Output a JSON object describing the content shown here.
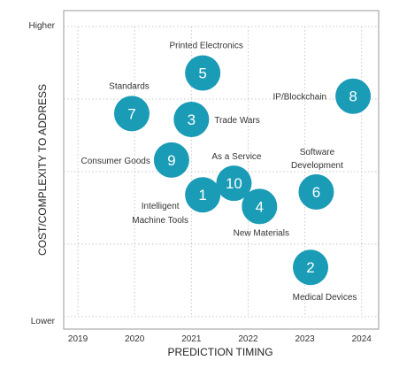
{
  "chart_data": {
    "type": "scatter",
    "title": "",
    "xlabel": "PREDICTION TIMING",
    "ylabel": "COST/COMPLEXITY TO ADDRESS",
    "xlim": [
      2018.75,
      2024.3
    ],
    "ylim": [
      0,
      100
    ],
    "x_ticks": [
      "2019",
      "2020",
      "2021",
      "2022",
      "2023",
      "2024"
    ],
    "y_tick_labels": {
      "top": "Higher",
      "bottom": "Lower"
    },
    "grid": true,
    "marker_color": "#1a9bb6",
    "marker_text_color": "#ffffff",
    "points": [
      {
        "number": "1",
        "label": "Intelligent\nMachine Tools",
        "x": 2021.2,
        "y": 42
      },
      {
        "number": "2",
        "label": "Medical Devices",
        "x": 2023.1,
        "y": 17
      },
      {
        "number": "3",
        "label": "Trade Wars",
        "x": 2021.0,
        "y": 68
      },
      {
        "number": "4",
        "label": "New Materials",
        "x": 2022.2,
        "y": 38
      },
      {
        "number": "5",
        "label": "Printed Electronics",
        "x": 2021.2,
        "y": 84
      },
      {
        "number": "6",
        "label": "Software\nDevelopment",
        "x": 2023.2,
        "y": 43
      },
      {
        "number": "7",
        "label": "Standards",
        "x": 2019.95,
        "y": 70
      },
      {
        "number": "8",
        "label": "IP/Blockchain",
        "x": 2023.85,
        "y": 76
      },
      {
        "number": "9",
        "label": "Consumer Goods",
        "x": 2020.65,
        "y": 54
      },
      {
        "number": "10",
        "label": "As a Service",
        "x": 2021.75,
        "y": 46
      }
    ]
  }
}
